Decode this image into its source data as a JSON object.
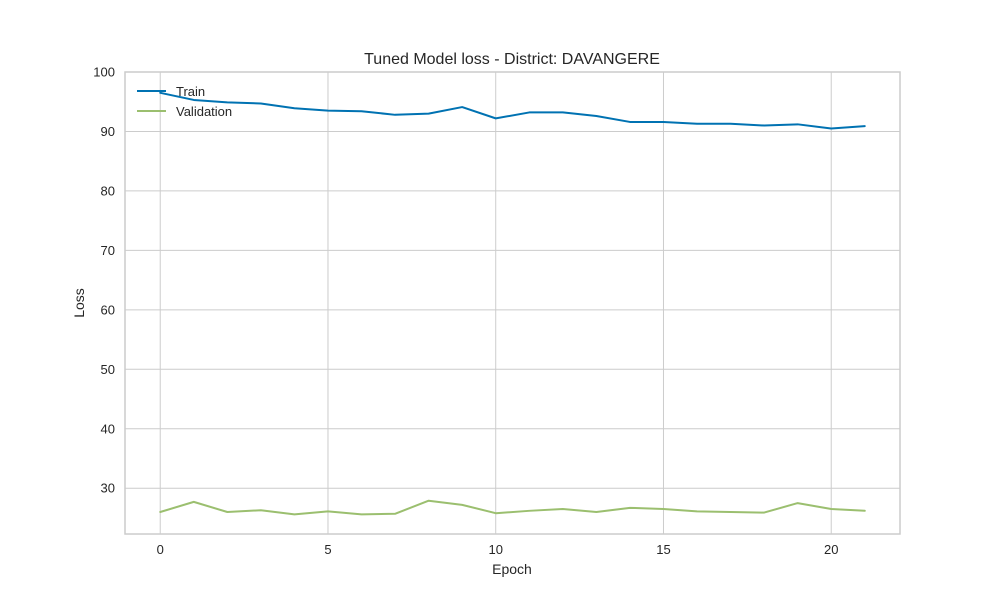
{
  "chart_data": {
    "type": "line",
    "title": "Tuned Model loss - District: DAVANGERE",
    "xlabel": "Epoch",
    "ylabel": "Loss",
    "xlim": [
      -1.05,
      22.05
    ],
    "ylim": [
      22.3,
      100
    ],
    "xticks": [
      0,
      5,
      10,
      15,
      20
    ],
    "yticks": [
      30,
      40,
      50,
      60,
      70,
      80,
      90,
      100
    ],
    "grid": true,
    "legend_position": "top-left",
    "x": [
      0,
      1,
      2,
      3,
      4,
      5,
      6,
      7,
      8,
      9,
      10,
      11,
      12,
      13,
      14,
      15,
      16,
      17,
      18,
      19,
      20,
      21
    ],
    "series": [
      {
        "name": "Train",
        "color": "#0072b2",
        "values": [
          96.5,
          95.3,
          94.9,
          94.7,
          93.9,
          93.5,
          93.4,
          92.8,
          93.0,
          94.1,
          92.2,
          93.2,
          93.2,
          92.6,
          91.6,
          91.6,
          91.3,
          91.3,
          91.0,
          91.2,
          90.5,
          90.9
        ]
      },
      {
        "name": "Validation",
        "color": "#9bbf6f",
        "values": [
          26.0,
          27.7,
          26.0,
          26.3,
          25.6,
          26.1,
          25.6,
          25.7,
          27.9,
          27.2,
          25.8,
          26.2,
          26.5,
          26.0,
          26.7,
          26.5,
          26.1,
          26.0,
          25.9,
          27.5,
          26.5,
          26.2
        ]
      }
    ]
  }
}
